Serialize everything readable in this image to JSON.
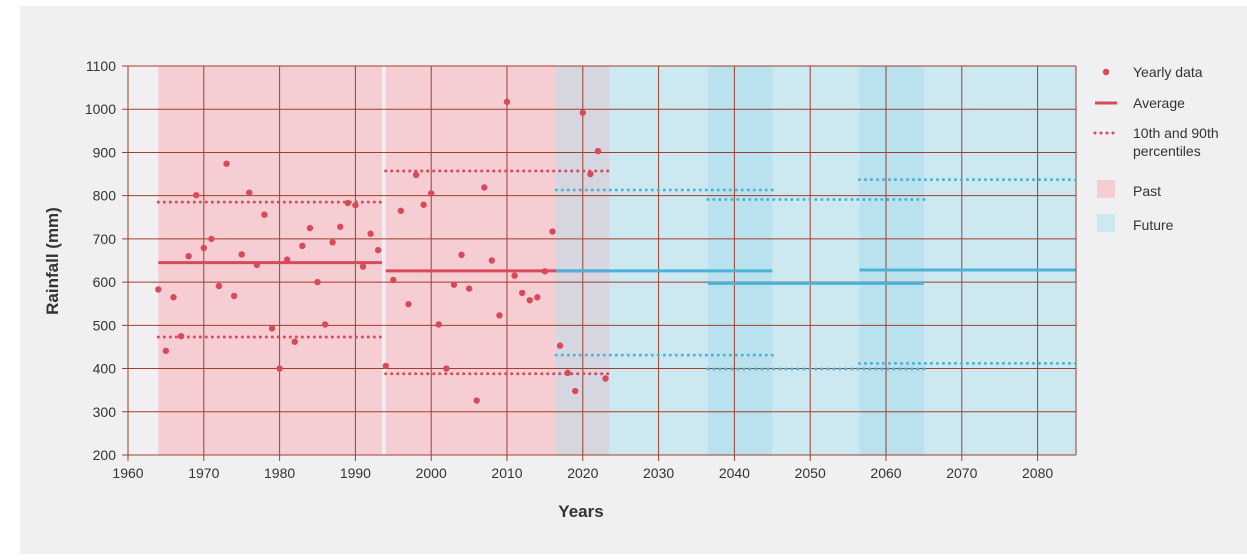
{
  "chart_data": {
    "type": "scatter",
    "xlabel": "Years",
    "ylabel": "Rainfall (mm)",
    "xlim": [
      1960,
      2085
    ],
    "ylim": [
      200,
      1100
    ],
    "xticks": [
      1960,
      1970,
      1980,
      1990,
      2000,
      2010,
      2020,
      2030,
      2040,
      2050,
      2060,
      2070,
      2080
    ],
    "yticks": [
      200,
      300,
      400,
      500,
      600,
      700,
      800,
      900,
      1000,
      1100
    ],
    "grid": true,
    "legend_position": "right",
    "colors": {
      "past": "#d94a58",
      "past_fill": "#f5cdd3",
      "future": "#4bb3d6",
      "future_fill": "#cce9f2",
      "overlap_fill": "#b9e1ee",
      "overlap_past_future": "#d5d6e0",
      "grid": "#a0402a"
    },
    "legend": [
      {
        "kind": "point",
        "label": "Yearly data"
      },
      {
        "kind": "line",
        "label": "Average"
      },
      {
        "kind": "dotted",
        "label": "10th and 90th",
        "label2": "percentiles"
      },
      {
        "kind": "box-past",
        "label": "Past"
      },
      {
        "kind": "box-future",
        "label": "Future"
      }
    ],
    "yearly_data": [
      {
        "x": 1964,
        "y": 583
      },
      {
        "x": 1965,
        "y": 441
      },
      {
        "x": 1966,
        "y": 565
      },
      {
        "x": 1967,
        "y": 475
      },
      {
        "x": 1968,
        "y": 660
      },
      {
        "x": 1969,
        "y": 801
      },
      {
        "x": 1970,
        "y": 679
      },
      {
        "x": 1971,
        "y": 700
      },
      {
        "x": 1972,
        "y": 591
      },
      {
        "x": 1973,
        "y": 874
      },
      {
        "x": 1974,
        "y": 568
      },
      {
        "x": 1975,
        "y": 664
      },
      {
        "x": 1976,
        "y": 807
      },
      {
        "x": 1977,
        "y": 640
      },
      {
        "x": 1978,
        "y": 756
      },
      {
        "x": 1979,
        "y": 493
      },
      {
        "x": 1980,
        "y": 400
      },
      {
        "x": 1981,
        "y": 652
      },
      {
        "x": 1982,
        "y": 462
      },
      {
        "x": 1983,
        "y": 684
      },
      {
        "x": 1984,
        "y": 725
      },
      {
        "x": 1985,
        "y": 600
      },
      {
        "x": 1986,
        "y": 502
      },
      {
        "x": 1987,
        "y": 692
      },
      {
        "x": 1988,
        "y": 728
      },
      {
        "x": 1989,
        "y": 783
      },
      {
        "x": 1990,
        "y": 778
      },
      {
        "x": 1991,
        "y": 636
      },
      {
        "x": 1992,
        "y": 712
      },
      {
        "x": 1993,
        "y": 674
      },
      {
        "x": 1994,
        "y": 406
      },
      {
        "x": 1995,
        "y": 605
      },
      {
        "x": 1996,
        "y": 765
      },
      {
        "x": 1997,
        "y": 549
      },
      {
        "x": 1998,
        "y": 848
      },
      {
        "x": 1999,
        "y": 779
      },
      {
        "x": 2000,
        "y": 805
      },
      {
        "x": 2001,
        "y": 502
      },
      {
        "x": 2002,
        "y": 400
      },
      {
        "x": 2003,
        "y": 594
      },
      {
        "x": 2004,
        "y": 663
      },
      {
        "x": 2005,
        "y": 585
      },
      {
        "x": 2006,
        "y": 326
      },
      {
        "x": 2007,
        "y": 819
      },
      {
        "x": 2008,
        "y": 650
      },
      {
        "x": 2009,
        "y": 523
      },
      {
        "x": 2010,
        "y": 1017
      },
      {
        "x": 2011,
        "y": 615
      },
      {
        "x": 2012,
        "y": 575
      },
      {
        "x": 2013,
        "y": 558
      },
      {
        "x": 2014,
        "y": 565
      },
      {
        "x": 2015,
        "y": 625
      },
      {
        "x": 2016,
        "y": 717
      },
      {
        "x": 2017,
        "y": 453
      },
      {
        "x": 2018,
        "y": 390
      },
      {
        "x": 2019,
        "y": 348
      },
      {
        "x": 2020,
        "y": 992
      },
      {
        "x": 2021,
        "y": 850
      },
      {
        "x": 2022,
        "y": 903
      },
      {
        "x": 2023,
        "y": 377
      }
    ],
    "periods": [
      {
        "group": "past",
        "x_start": 1964,
        "x_end": 1993.5,
        "average": 645,
        "p10": 473,
        "p90": 785
      },
      {
        "group": "past",
        "x_start": 1994,
        "x_end": 2023.5,
        "average": 626,
        "p10": 388,
        "p90": 857
      },
      {
        "group": "future",
        "x_start": 2016.5,
        "x_end": 2045,
        "average": 626,
        "p10": 431,
        "p90": 813
      },
      {
        "group": "future",
        "x_start": 2036.5,
        "x_end": 2065,
        "average": 597,
        "p10": 399,
        "p90": 791
      },
      {
        "group": "future",
        "x_start": 2056.5,
        "x_end": 2085,
        "average": 628,
        "p10": 412,
        "p90": 837
      }
    ]
  }
}
